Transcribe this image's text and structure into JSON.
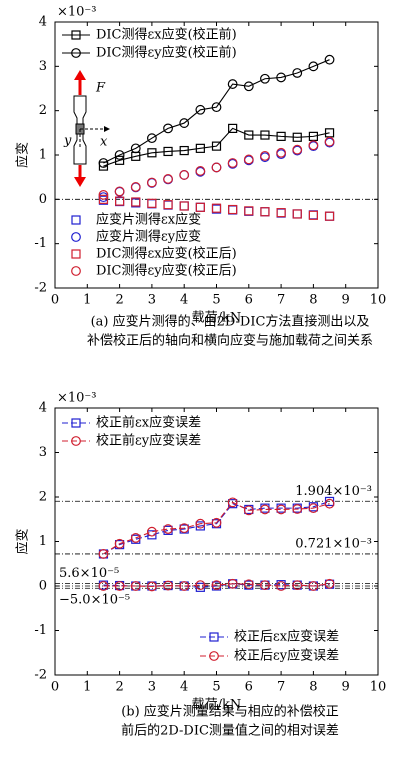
{
  "chart_data": [
    {
      "type": "line",
      "xlabel": "载荷/kN",
      "ylabel": "应变",
      "unit_label": "×10⁻³",
      "caption": [
        "(a) 应变片测得的、由2D-DIC方法直接测出以及",
        "补偿校正后的轴向和横向应变与施加载荷之间关系"
      ],
      "inset_labels": [
        "F",
        "x",
        "y"
      ],
      "x": [
        1.5,
        2,
        2.5,
        3,
        3.5,
        4,
        4.5,
        5,
        5.5,
        6,
        6.5,
        7,
        7.5,
        8,
        8.5
      ],
      "xlim": [
        0,
        10
      ],
      "xticks": [
        0,
        1,
        2,
        3,
        4,
        5,
        6,
        7,
        8,
        9,
        10
      ],
      "ylim": [
        -2,
        4
      ],
      "yticks": [
        -2,
        -1,
        0,
        1,
        2,
        3,
        4
      ],
      "series": [
        {
          "name": "DIC测得εx应变(校正前)",
          "color": "#000000",
          "marker": "square",
          "line": true,
          "values": [
            0.75,
            0.88,
            0.97,
            1.05,
            1.08,
            1.1,
            1.15,
            1.2,
            1.6,
            1.45,
            1.45,
            1.42,
            1.4,
            1.42,
            1.5
          ]
        },
        {
          "name": "DIC测得εy应变(校正前)",
          "color": "#000000",
          "marker": "circle",
          "line": true,
          "values": [
            0.82,
            1.0,
            1.15,
            1.38,
            1.6,
            1.72,
            2.02,
            2.08,
            2.6,
            2.55,
            2.72,
            2.75,
            2.85,
            3.0,
            3.15
          ]
        },
        {
          "name": "应变片测得εx应变",
          "color": "#1f1fd0",
          "marker": "square",
          "line": false,
          "values": [
            -0.02,
            -0.05,
            -0.08,
            -0.1,
            -0.13,
            -0.15,
            -0.18,
            -0.22,
            -0.24,
            -0.27,
            -0.28,
            -0.31,
            -0.33,
            -0.35,
            -0.38
          ]
        },
        {
          "name": "应变片测得εy应变",
          "color": "#1f1fd0",
          "marker": "circle",
          "line": false,
          "values": [
            0.05,
            0.17,
            0.27,
            0.37,
            0.45,
            0.55,
            0.62,
            0.72,
            0.8,
            0.88,
            0.95,
            1.02,
            1.1,
            1.2,
            1.28
          ]
        },
        {
          "name": "DIC测得εx应变(校正后)",
          "color": "#d01f2f",
          "marker": "square",
          "line": false,
          "values": [
            0,
            -0.04,
            -0.06,
            -0.09,
            -0.12,
            -0.15,
            -0.18,
            -0.2,
            -0.23,
            -0.26,
            -0.28,
            -0.3,
            -0.33,
            -0.36,
            -0.38
          ]
        },
        {
          "name": "DIC测得εy应变(校正后)",
          "color": "#d01f2f",
          "marker": "circle",
          "line": false,
          "values": [
            0.1,
            0.18,
            0.28,
            0.38,
            0.46,
            0.55,
            0.64,
            0.72,
            0.82,
            0.9,
            0.98,
            1.05,
            1.12,
            1.22,
            1.3
          ]
        }
      ]
    },
    {
      "type": "line",
      "xlabel": "载荷/kN",
      "ylabel": "应变",
      "unit_label": "×10⁻³",
      "caption": [
        "(b) 应变片测量结果与相应的补偿校正",
        "前后的2D-DIC测量值之间的相对误差"
      ],
      "x": [
        1.5,
        2,
        2.5,
        3,
        3.5,
        4,
        4.5,
        5,
        5.5,
        6,
        6.5,
        7,
        7.5,
        8,
        8.5
      ],
      "xlim": [
        0,
        10
      ],
      "xticks": [
        0,
        1,
        2,
        3,
        4,
        5,
        6,
        7,
        8,
        9,
        10
      ],
      "ylim": [
        -2,
        4
      ],
      "yticks": [
        -2,
        -1,
        0,
        1,
        2,
        3,
        4
      ],
      "reference_lines": [
        {
          "value": 1.904,
          "label": "1.904×10⁻³"
        },
        {
          "value": 0.721,
          "label": "0.721×10⁻³"
        },
        {
          "value": 0.056,
          "label": "5.6×10⁻⁵"
        },
        {
          "value": -0.05,
          "label": "−5.0×10⁻⁵"
        }
      ],
      "series": [
        {
          "name": "校正前εx应变误差",
          "color": "#1f1fd0",
          "marker": "square",
          "line": true,
          "values": [
            0.72,
            0.93,
            1.05,
            1.15,
            1.25,
            1.28,
            1.35,
            1.4,
            1.85,
            1.72,
            1.75,
            1.75,
            1.75,
            1.78,
            1.9
          ]
        },
        {
          "name": "校正前εy应变误差",
          "color": "#d01f2f",
          "marker": "circle",
          "line": true,
          "values": [
            0.72,
            0.95,
            1.08,
            1.22,
            1.28,
            1.3,
            1.4,
            1.42,
            1.88,
            1.7,
            1.72,
            1.72,
            1.73,
            1.75,
            1.85
          ]
        },
        {
          "name": "校正后εx应变误差",
          "color": "#1f1fd0",
          "marker": "square",
          "line": true,
          "values": [
            0.02,
            0.01,
            0.0,
            0.0,
            0.01,
            0.0,
            -0.03,
            0.0,
            0.05,
            0.02,
            0.02,
            0.03,
            0.02,
            0.0,
            0.04
          ]
        },
        {
          "name": "校正后εy应变误差",
          "color": "#d01f2f",
          "marker": "circle",
          "line": true,
          "values": [
            0.0,
            0.0,
            0.0,
            -0.01,
            0.01,
            0.0,
            0.02,
            0.02,
            0.05,
            0.04,
            0.02,
            0.0,
            0.02,
            0.0,
            0.05
          ]
        }
      ]
    }
  ]
}
